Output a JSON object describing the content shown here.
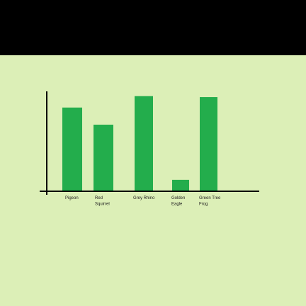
{
  "colors": {
    "background": "#dcefb7",
    "bar": "#23ad4c",
    "axis": "#000000",
    "top_band": "#000000"
  },
  "chart_data": {
    "type": "bar",
    "title": "",
    "xlabel": "",
    "ylabel": "",
    "categories": [
      [
        "Pigeon"
      ],
      [
        "Red",
        "Squirrel"
      ],
      [
        "Grey Rhino"
      ],
      [
        "Golden",
        "Eagle"
      ],
      [
        "Green Tree",
        "Frog"
      ]
    ],
    "values": [
      88,
      70,
      100,
      12,
      99
    ],
    "ylim": [
      0,
      105
    ],
    "grid": false,
    "legend": "none"
  }
}
